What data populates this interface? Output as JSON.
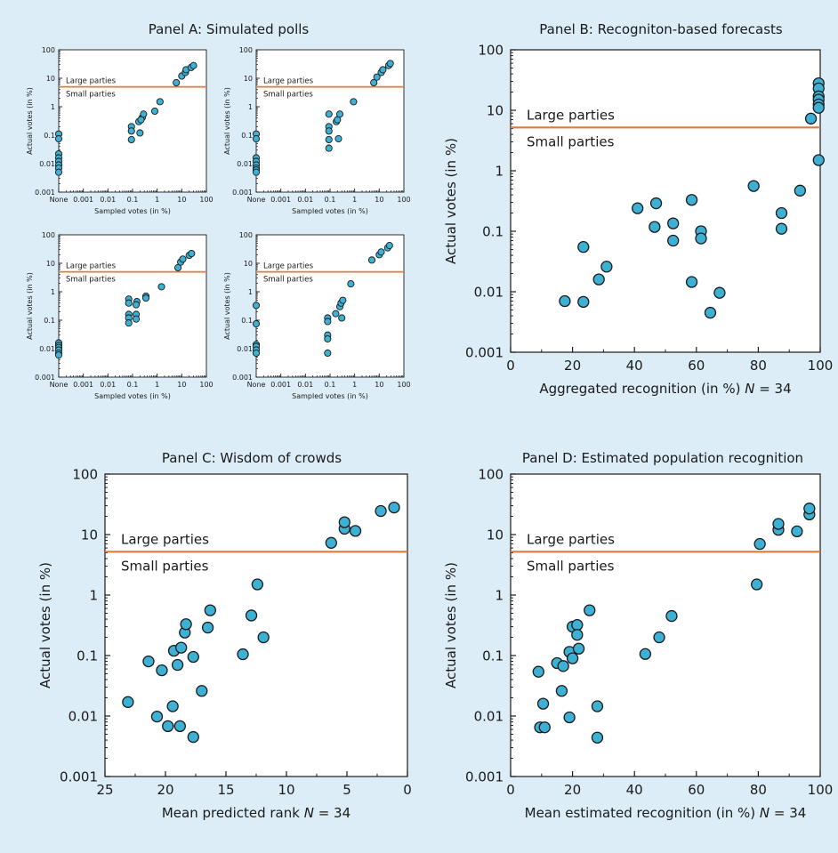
{
  "colors": {
    "background": "#dcedf8",
    "plot_area": "#ffffff",
    "threshold_line": "#e07b39",
    "marker_fill": "#3db0d4",
    "marker_edge": "#1a1a1a"
  },
  "threshold_labels": {
    "above": "Large parties",
    "below": "Small parties"
  },
  "chart_data": [
    {
      "id": "panelA",
      "type": "scatter",
      "title": "Panel A: Simulated polls",
      "xscale": "log",
      "yscale": "log",
      "xlim": [
        0.0001,
        100
      ],
      "ylim": [
        0.001,
        100
      ],
      "x_ticks": [
        "None",
        "0.001",
        "0.01",
        "0.1",
        "1",
        "10",
        "100"
      ],
      "y_ticks": [
        "0.001",
        "0.01",
        "0.1",
        "1",
        "10",
        "100"
      ],
      "threshold": 5,
      "subplots": [
        {
          "xlabel": "Sampled votes (in %)",
          "ylabel": "Actual votes (in %)",
          "points": [
            [
              "None",
              0.11
            ],
            [
              "None",
              0.075
            ],
            [
              "None",
              0.022
            ],
            [
              "None",
              0.016
            ],
            [
              "None",
              0.012
            ],
            [
              "None",
              0.009
            ],
            [
              "None",
              0.007
            ],
            [
              "None",
              0.005
            ],
            [
              0.09,
              0.2
            ],
            [
              0.09,
              0.14
            ],
            [
              0.09,
              0.07
            ],
            [
              0.18,
              0.3
            ],
            [
              0.2,
              0.12
            ],
            [
              0.25,
              0.42
            ],
            [
              0.28,
              0.55
            ],
            [
              0.22,
              0.35
            ],
            [
              0.8,
              0.7
            ],
            [
              1.3,
              1.5
            ],
            [
              6,
              7
            ],
            [
              10,
              12
            ],
            [
              14,
              16
            ],
            [
              15,
              20
            ],
            [
              24,
              24
            ],
            [
              30,
              28
            ]
          ]
        },
        {
          "xlabel": "Sampled votes (in %)",
          "ylabel": "Actual votes (in %)",
          "points": [
            [
              "None",
              0.11
            ],
            [
              "None",
              0.075
            ],
            [
              "None",
              0.016
            ],
            [
              "None",
              0.012
            ],
            [
              "None",
              0.009
            ],
            [
              "None",
              0.007
            ],
            [
              "None",
              0.006
            ],
            [
              "None",
              0.005
            ],
            [
              0.09,
              0.55
            ],
            [
              0.09,
              0.2
            ],
            [
              0.09,
              0.14
            ],
            [
              0.09,
              0.07
            ],
            [
              0.09,
              0.035
            ],
            [
              0.18,
              0.3
            ],
            [
              0.2,
              0.35
            ],
            [
              0.25,
              0.55
            ],
            [
              0.22,
              0.075
            ],
            [
              0.9,
              1.5
            ],
            [
              6,
              7
            ],
            [
              8,
              11
            ],
            [
              12,
              16
            ],
            [
              14,
              20
            ],
            [
              24,
              28
            ],
            [
              28,
              33
            ]
          ]
        },
        {
          "xlabel": "Sampled votes (in %)",
          "ylabel": "Actual votes (in %)",
          "points": [
            [
              "None",
              0.016
            ],
            [
              "None",
              0.013
            ],
            [
              "None",
              0.011
            ],
            [
              "None",
              0.009
            ],
            [
              "None",
              0.007
            ],
            [
              "None",
              0.006
            ],
            [
              0.07,
              0.55
            ],
            [
              0.07,
              0.4
            ],
            [
              0.07,
              0.16
            ],
            [
              0.07,
              0.12
            ],
            [
              0.07,
              0.08
            ],
            [
              0.15,
              0.45
            ],
            [
              0.14,
              0.35
            ],
            [
              0.14,
              0.16
            ],
            [
              0.14,
              0.11
            ],
            [
              0.35,
              0.7
            ],
            [
              0.35,
              0.6
            ],
            [
              1.5,
              1.5
            ],
            [
              7,
              7
            ],
            [
              9,
              11
            ],
            [
              11,
              14
            ],
            [
              20,
              19
            ],
            [
              25,
              22
            ]
          ]
        },
        {
          "xlabel": "Sampled votes (in %)",
          "ylabel": "Actual votes (in %)",
          "points": [
            [
              "None",
              0.33
            ],
            [
              "None",
              0.075
            ],
            [
              "None",
              0.014
            ],
            [
              "None",
              0.012
            ],
            [
              "None",
              0.009
            ],
            [
              "None",
              0.007
            ],
            [
              0.08,
              0.12
            ],
            [
              0.08,
              0.09
            ],
            [
              0.08,
              0.03
            ],
            [
              0.08,
              0.022
            ],
            [
              0.08,
              0.007
            ],
            [
              0.17,
              0.17
            ],
            [
              0.25,
              0.3
            ],
            [
              0.28,
              0.4
            ],
            [
              0.3,
              0.12
            ],
            [
              0.33,
              0.5
            ],
            [
              0.7,
              1.9
            ],
            [
              5,
              13
            ],
            [
              10,
              20
            ],
            [
              12,
              25
            ],
            [
              22,
              35
            ],
            [
              26,
              42
            ]
          ]
        }
      ]
    },
    {
      "id": "panelB",
      "type": "scatter",
      "title": "Panel B: Recogniton-based forecasts",
      "xlabel": "Aggregated recognition (in %)",
      "n_label": "N = 34",
      "ylabel": "Actual votes (in %)",
      "xscale": "linear",
      "yscale": "log",
      "xlim": [
        0,
        100
      ],
      "ylim": [
        0.001,
        100
      ],
      "x_ticks": [
        "0",
        "20",
        "40",
        "60",
        "80",
        "100"
      ],
      "y_ticks": [
        "0.001",
        "0.01",
        "0.1",
        "1",
        "10",
        "100"
      ],
      "threshold": 5.2,
      "points": [
        [
          17.5,
          0.007
        ],
        [
          23.5,
          0.0068
        ],
        [
          23.5,
          0.055
        ],
        [
          28.5,
          0.016
        ],
        [
          31,
          0.026
        ],
        [
          41,
          0.24
        ],
        [
          47,
          0.29
        ],
        [
          46.5,
          0.118
        ],
        [
          52.5,
          0.135
        ],
        [
          52.5,
          0.07
        ],
        [
          58.5,
          0.33
        ],
        [
          58.5,
          0.0145
        ],
        [
          61.5,
          0.1
        ],
        [
          61.5,
          0.076
        ],
        [
          64.5,
          0.0045
        ],
        [
          67.5,
          0.0096
        ],
        [
          78.5,
          0.56
        ],
        [
          87.5,
          0.2
        ],
        [
          87.5,
          0.11
        ],
        [
          93.5,
          0.47
        ],
        [
          97,
          7.3
        ],
        [
          99.5,
          28
        ],
        [
          99.5,
          23
        ],
        [
          99.5,
          17
        ],
        [
          99.5,
          15
        ],
        [
          99.5,
          12.5
        ],
        [
          99.5,
          11
        ],
        [
          99.5,
          1.5
        ]
      ]
    },
    {
      "id": "panelC",
      "type": "scatter",
      "title": "Panel C: Wisdom of crowds",
      "xlabel": "Mean predicted rank",
      "n_label": "N = 34",
      "ylabel": "Actual votes (in %)",
      "xscale": "linear-reversed",
      "yscale": "log",
      "xlim": [
        25,
        0
      ],
      "ylim": [
        0.001,
        100
      ],
      "x_ticks": [
        "25",
        "20",
        "15",
        "10",
        "5",
        "0"
      ],
      "y_ticks": [
        "0.001",
        "0.01",
        "0.1",
        "1",
        "10",
        "100"
      ],
      "threshold": 5.2,
      "points": [
        [
          23.1,
          0.017
        ],
        [
          21.4,
          0.08
        ],
        [
          20.7,
          0.0098
        ],
        [
          20.3,
          0.057
        ],
        [
          19.8,
          0.0068
        ],
        [
          19.4,
          0.0145
        ],
        [
          19.3,
          0.12
        ],
        [
          19,
          0.07
        ],
        [
          18.8,
          0.0068
        ],
        [
          18.7,
          0.135
        ],
        [
          18.4,
          0.24
        ],
        [
          18.3,
          0.33
        ],
        [
          17.7,
          0.0045
        ],
        [
          17.7,
          0.095
        ],
        [
          17,
          0.026
        ],
        [
          16.5,
          0.29
        ],
        [
          16.3,
          0.56
        ],
        [
          13.6,
          0.105
        ],
        [
          12.9,
          0.46
        ],
        [
          12.4,
          1.5
        ],
        [
          11.9,
          0.2
        ],
        [
          6.3,
          7.3
        ],
        [
          5.2,
          12.5
        ],
        [
          5.2,
          16
        ],
        [
          4.3,
          11.5
        ],
        [
          2.2,
          24.5
        ],
        [
          1.1,
          28
        ]
      ]
    },
    {
      "id": "panelD",
      "type": "scatter",
      "title": "Panel D: Estimated population recognition",
      "xlabel": "Mean estimated recognition (in %)",
      "n_label": "N = 34",
      "ylabel": "Actual votes (in %)",
      "xscale": "linear",
      "yscale": "log",
      "xlim": [
        0,
        100
      ],
      "ylim": [
        0.001,
        100
      ],
      "x_ticks": [
        "0",
        "20",
        "40",
        "60",
        "80",
        "100"
      ],
      "y_ticks": [
        "0.001",
        "0.01",
        "0.1",
        "1",
        "10",
        "100"
      ],
      "threshold": 5.2,
      "points": [
        [
          9,
          0.054
        ],
        [
          9.5,
          0.0065
        ],
        [
          10.5,
          0.016
        ],
        [
          11,
          0.0065
        ],
        [
          15,
          0.075
        ],
        [
          16.5,
          0.026
        ],
        [
          17,
          0.067
        ],
        [
          19,
          0.0095
        ],
        [
          19,
          0.115
        ],
        [
          20,
          0.3
        ],
        [
          20,
          0.09
        ],
        [
          21.5,
          0.32
        ],
        [
          21.5,
          0.22
        ],
        [
          22,
          0.13
        ],
        [
          25.5,
          0.56
        ],
        [
          28,
          0.0145
        ],
        [
          28,
          0.0044
        ],
        [
          43.5,
          0.106
        ],
        [
          48,
          0.2
        ],
        [
          52,
          0.45
        ],
        [
          79.5,
          1.5
        ],
        [
          80.5,
          7
        ],
        [
          86.5,
          12
        ],
        [
          86.5,
          15
        ],
        [
          92.5,
          11.3
        ],
        [
          96.5,
          21.5
        ],
        [
          96.5,
          27
        ]
      ]
    }
  ]
}
